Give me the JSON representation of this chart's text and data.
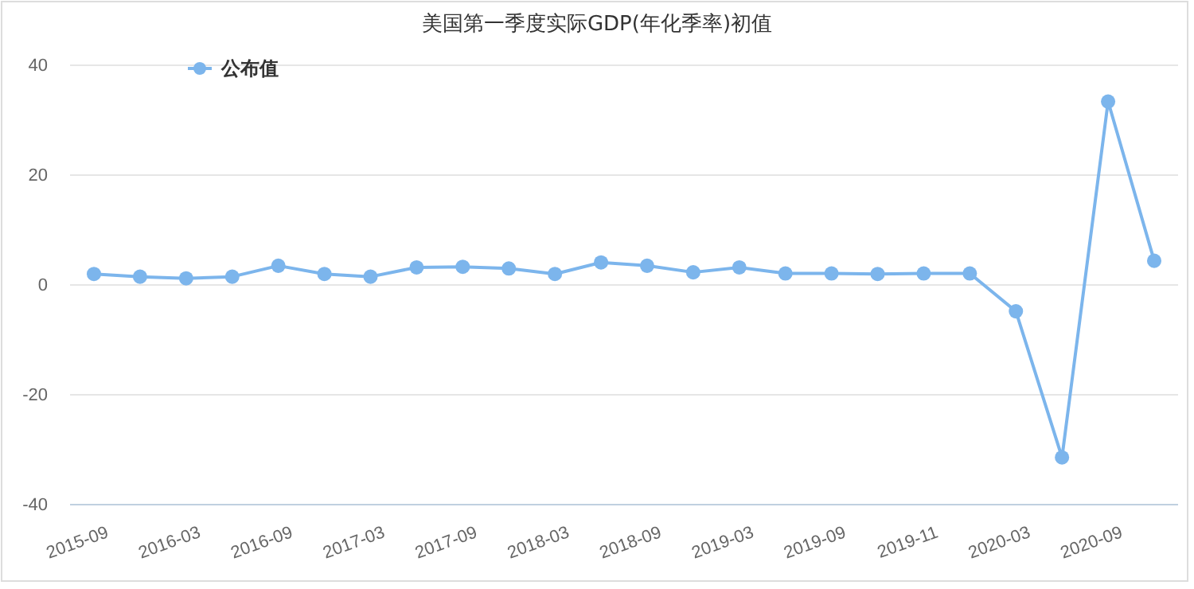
{
  "chart_data": {
    "type": "line",
    "title": "美国第一季度实际GDP(年化季率)初值",
    "categories": [
      "2015-09",
      null,
      "2016-03",
      null,
      "2016-09",
      null,
      "2017-03",
      null,
      "2017-09",
      null,
      "2018-03",
      null,
      "2018-09",
      null,
      "2019-03",
      null,
      "2019-09",
      null,
      "2019-11",
      null,
      "2020-03",
      null,
      "2020-09",
      null
    ],
    "series": [
      {
        "name": "公布值",
        "color": "#7cb5ec",
        "values": [
          2.0,
          1.5,
          1.2,
          1.5,
          3.5,
          2.0,
          1.5,
          3.2,
          3.3,
          3.0,
          2.0,
          4.1,
          3.5,
          2.3,
          3.2,
          2.1,
          2.1,
          2.0,
          2.1,
          2.1,
          -4.8,
          -31.4,
          33.4,
          4.4
        ]
      }
    ],
    "ylim": [
      -40,
      40
    ],
    "yticks": [
      -40,
      -20,
      0,
      20,
      40
    ],
    "grid": "y",
    "legend": "top left",
    "marker": "circle",
    "line_style": "solid"
  }
}
